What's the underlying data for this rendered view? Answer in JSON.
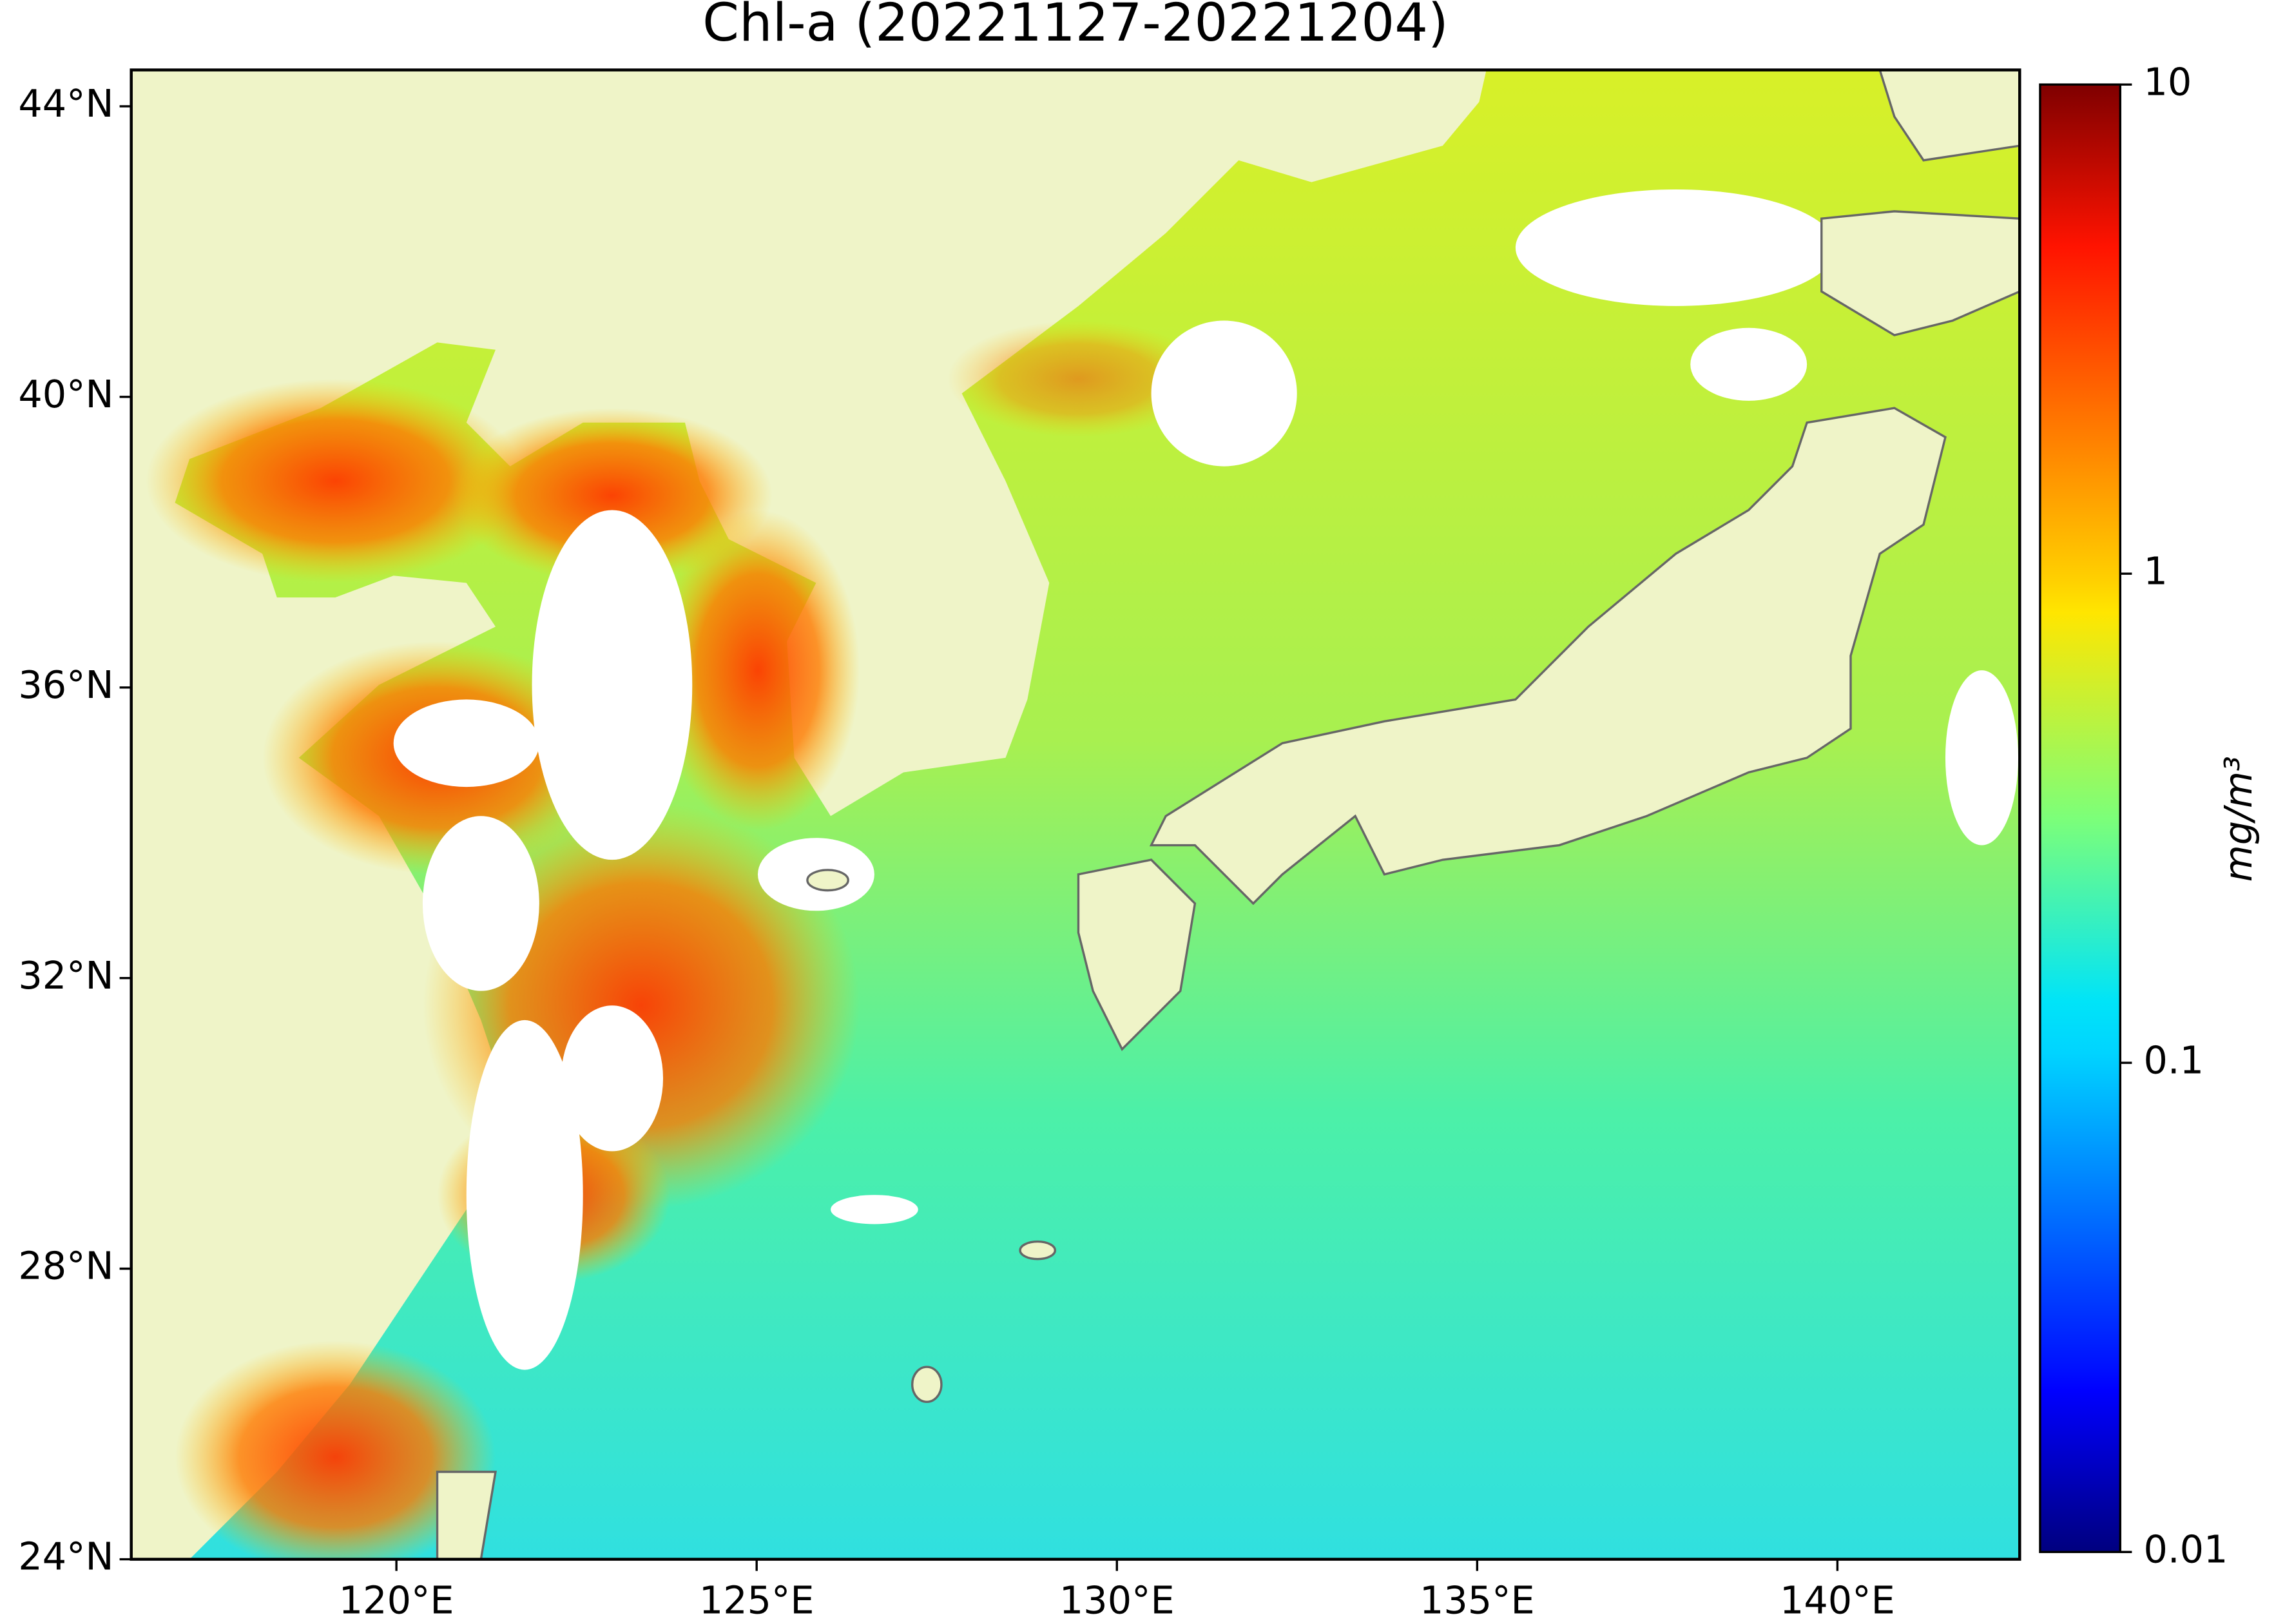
{
  "map": {
    "title": "Chl-a (20221127-20221204)",
    "xlim": [
      116.32,
      142.53
    ],
    "ylim": [
      24,
      44.5
    ],
    "xticks": [
      {
        "value": 120,
        "label": "120°E"
      },
      {
        "value": 125,
        "label": "125°E"
      },
      {
        "value": 130,
        "label": "130°E"
      },
      {
        "value": 135,
        "label": "135°E"
      },
      {
        "value": 140,
        "label": "140°E"
      }
    ],
    "yticks": [
      {
        "value": 24,
        "label": "24°N"
      },
      {
        "value": 28,
        "label": "28°N"
      },
      {
        "value": 32,
        "label": "32°N"
      },
      {
        "value": 36,
        "label": "36°N"
      },
      {
        "value": 40,
        "label": "40°N"
      },
      {
        "value": 44,
        "label": "44°N"
      }
    ],
    "colorbar": {
      "label": "mg/m³",
      "scale": "log",
      "lim": [
        0.01,
        10
      ],
      "ticks": [
        0.01,
        0.1,
        1,
        10
      ],
      "colormap": "jet"
    }
  }
}
